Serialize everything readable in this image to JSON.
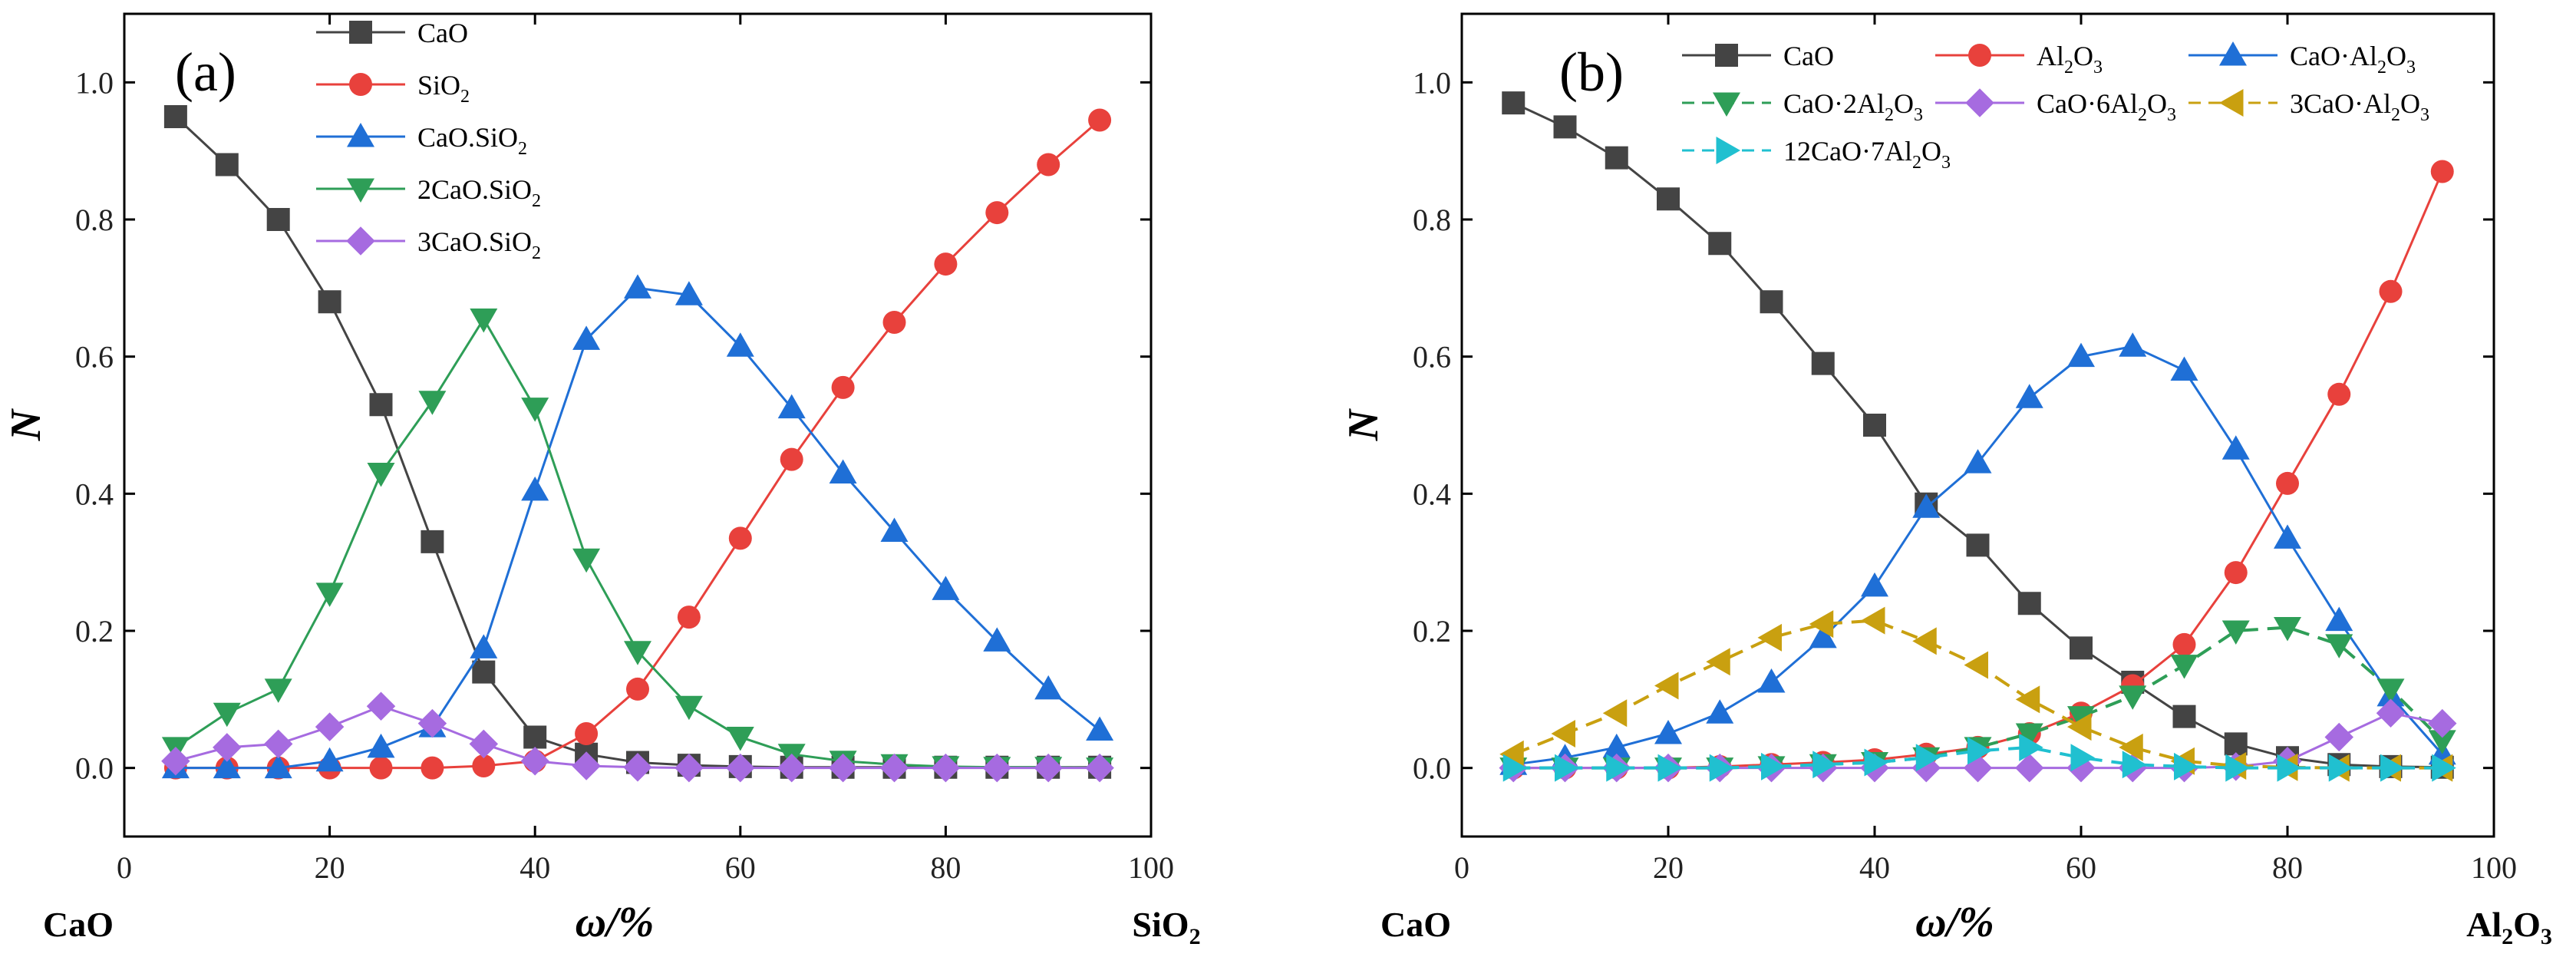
{
  "chart_data": [
    {
      "type": "line",
      "panel_label": "(a)",
      "xlabel": "ω/%",
      "ylabel": "N",
      "x_left_label": "CaO",
      "x_right_label": "SiO2",
      "xlim": [
        0,
        100
      ],
      "ylim": [
        -0.1,
        1.1
      ],
      "xticks": [
        0,
        20,
        40,
        60,
        80,
        100
      ],
      "yticks": [
        0.0,
        0.2,
        0.4,
        0.6,
        0.8,
        1.0
      ],
      "x": [
        5,
        10,
        15,
        20,
        25,
        30,
        35,
        40,
        45,
        50,
        55,
        60,
        65,
        70,
        75,
        80,
        85,
        90,
        95
      ],
      "series": [
        {
          "name": "CaO",
          "legend": [
            "CaO"
          ],
          "color": "#444444",
          "marker": "square",
          "dashed": false,
          "values": [
            0.95,
            0.88,
            0.8,
            0.68,
            0.53,
            0.33,
            0.14,
            0.045,
            0.02,
            0.008,
            0.004,
            0.002,
            0.001,
            0.001,
            0.001,
            0.001,
            0.001,
            0.001,
            0.001
          ]
        },
        {
          "name": "SiO2",
          "legend": [
            "SiO",
            "2",
            ""
          ],
          "color": "#e8413c",
          "marker": "circle",
          "dashed": false,
          "values": [
            0.0,
            0.0,
            0.0,
            0.0,
            0.0,
            0.0,
            0.003,
            0.01,
            0.05,
            0.115,
            0.22,
            0.335,
            0.45,
            0.555,
            0.65,
            0.735,
            0.81,
            0.88,
            0.945
          ]
        },
        {
          "name": "CaO.SiO2",
          "legend": [
            "CaO.SiO",
            "2",
            ""
          ],
          "color": "#1f6fd6",
          "marker": "triangle-up",
          "dashed": false,
          "values": [
            0.0,
            0.0,
            0.0,
            0.01,
            0.03,
            0.06,
            0.175,
            0.405,
            0.625,
            0.7,
            0.69,
            0.615,
            0.525,
            0.43,
            0.345,
            0.26,
            0.185,
            0.115,
            0.055
          ]
        },
        {
          "name": "2CaO.SiO2",
          "legend": [
            "2CaO.SiO",
            "2",
            ""
          ],
          "color": "#2e9e57",
          "marker": "triangle-down",
          "dashed": false,
          "values": [
            0.03,
            0.08,
            0.115,
            0.255,
            0.43,
            0.535,
            0.655,
            0.525,
            0.305,
            0.17,
            0.09,
            0.045,
            0.02,
            0.01,
            0.005,
            0.002,
            0.001,
            0.001,
            0.0
          ]
        },
        {
          "name": "3CaO.SiO2",
          "legend": [
            "3CaO.SiO",
            "2",
            ""
          ],
          "color": "#a66be0",
          "marker": "diamond",
          "dashed": false,
          "values": [
            0.01,
            0.03,
            0.035,
            0.06,
            0.09,
            0.065,
            0.035,
            0.01,
            0.003,
            0.001,
            0.0,
            0.0,
            0.0,
            0.0,
            0.0,
            0.0,
            0.0,
            0.0,
            0.0
          ]
        }
      ]
    },
    {
      "type": "line",
      "panel_label": "(b)",
      "xlabel": "ω/%",
      "ylabel": "N",
      "x_left_label": "CaO",
      "x_right_label": "Al2O3",
      "xlim": [
        0,
        100
      ],
      "ylim": [
        -0.1,
        1.1
      ],
      "xticks": [
        0,
        20,
        40,
        60,
        80,
        100
      ],
      "yticks": [
        0.0,
        0.2,
        0.4,
        0.6,
        0.8,
        1.0
      ],
      "x": [
        5,
        10,
        15,
        20,
        25,
        30,
        35,
        40,
        45,
        50,
        55,
        60,
        65,
        70,
        75,
        80,
        85,
        90,
        95
      ],
      "series": [
        {
          "name": "CaO",
          "legend": [
            "CaO"
          ],
          "color": "#444444",
          "marker": "square",
          "dashed": false,
          "values": [
            0.97,
            0.935,
            0.89,
            0.83,
            0.765,
            0.68,
            0.59,
            0.5,
            0.385,
            0.325,
            0.24,
            0.175,
            0.125,
            0.075,
            0.035,
            0.015,
            0.005,
            0.002,
            0.001
          ]
        },
        {
          "name": "Al2O3",
          "legend": [
            "Al",
            "2",
            "O",
            "3",
            ""
          ],
          "color": "#e8413c",
          "marker": "circle",
          "dashed": false,
          "values": [
            0.0,
            0.0,
            0.0,
            0.0,
            0.002,
            0.005,
            0.008,
            0.012,
            0.02,
            0.03,
            0.05,
            0.08,
            0.12,
            0.18,
            0.285,
            0.415,
            0.545,
            0.695,
            0.87
          ]
        },
        {
          "name": "CaO·Al2O3",
          "legend": [
            "CaO·Al",
            "2",
            "O",
            "3",
            ""
          ],
          "color": "#1f6fd6",
          "marker": "triangle-up",
          "dashed": false,
          "values": [
            0.005,
            0.015,
            0.03,
            0.05,
            0.08,
            0.125,
            0.19,
            0.265,
            0.38,
            0.445,
            0.54,
            0.6,
            0.615,
            0.58,
            0.465,
            0.335,
            0.215,
            0.105,
            0.02
          ]
        },
        {
          "name": "CaO·2Al2O3",
          "legend": [
            "CaO·2Al",
            "2",
            "O",
            "3",
            ""
          ],
          "color": "#2e9e57",
          "marker": "triangle-down",
          "dashed": true,
          "values": [
            0.0,
            0.0,
            0.0,
            0.0,
            0.0,
            0.002,
            0.005,
            0.008,
            0.015,
            0.03,
            0.05,
            0.075,
            0.105,
            0.15,
            0.2,
            0.205,
            0.18,
            0.115,
            0.04
          ]
        },
        {
          "name": "CaO·6Al2O3",
          "legend": [
            "CaO·6Al",
            "2",
            "O",
            "3",
            ""
          ],
          "color": "#a66be0",
          "marker": "diamond",
          "dashed": false,
          "values": [
            0.0,
            0.0,
            0.0,
            0.0,
            0.0,
            0.0,
            0.0,
            0.0,
            0.0,
            0.0,
            0.0,
            0.0,
            0.0,
            0.0,
            0.002,
            0.01,
            0.045,
            0.08,
            0.065
          ]
        },
        {
          "name": "3CaO·Al2O3",
          "legend": [
            "3CaO·Al",
            "2",
            "O",
            "3",
            ""
          ],
          "color": "#c9a010",
          "marker": "triangle-left",
          "dashed": true,
          "values": [
            0.02,
            0.05,
            0.08,
            0.12,
            0.155,
            0.19,
            0.21,
            0.215,
            0.185,
            0.15,
            0.1,
            0.06,
            0.03,
            0.01,
            0.003,
            0.001,
            0.0,
            0.0,
            0.0
          ]
        },
        {
          "name": "12CaO·7Al2O3",
          "legend": [
            "12CaO·7Al",
            "2",
            "O",
            "3",
            ""
          ],
          "color": "#20c0d0",
          "marker": "triangle-right",
          "dashed": true,
          "values": [
            0.0,
            0.0,
            0.0,
            0.0,
            0.0,
            0.002,
            0.005,
            0.008,
            0.015,
            0.025,
            0.03,
            0.015,
            0.005,
            0.002,
            0.0,
            0.0,
            0.0,
            0.0,
            0.0
          ]
        }
      ]
    }
  ]
}
